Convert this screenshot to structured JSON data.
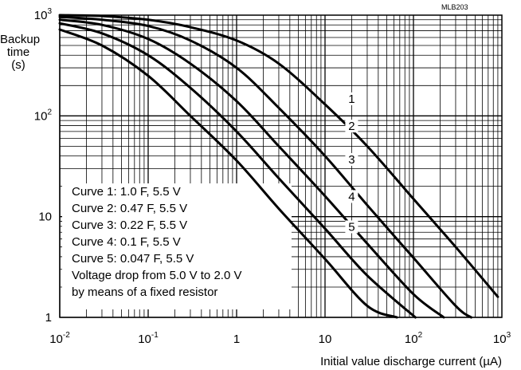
{
  "chart_data": {
    "type": "line",
    "code": "MLB203",
    "ylabel": [
      "Backup",
      "time",
      "(s)"
    ],
    "xlabel": "Initial value discharge current (µA)",
    "x_scale": "log",
    "y_scale": "log",
    "xlim": [
      0.01,
      1000
    ],
    "ylim": [
      1,
      1000
    ],
    "grid": true,
    "x_ticks": [
      {
        "value": 0.01,
        "base": "10",
        "exp": "-2"
      },
      {
        "value": 0.1,
        "base": "10",
        "exp": "-1"
      },
      {
        "value": 1,
        "base": "1",
        "exp": ""
      },
      {
        "value": 10,
        "base": "10",
        "exp": ""
      },
      {
        "value": 100,
        "base": "10",
        "exp": "2"
      },
      {
        "value": 1000,
        "base": "10",
        "exp": "3"
      }
    ],
    "y_ticks": [
      {
        "value": 1,
        "base": "1",
        "exp": ""
      },
      {
        "value": 10,
        "base": "10",
        "exp": ""
      },
      {
        "value": 100,
        "base": "10",
        "exp": "2"
      },
      {
        "value": 1000,
        "base": "10",
        "exp": "3"
      }
    ],
    "series": [
      {
        "name": "1",
        "label_at": [
          20,
          140
        ],
        "x": [
          0.01,
          0.03,
          0.1,
          0.3,
          1,
          3,
          10,
          30,
          100,
          300,
          900
        ],
        "y": [
          1000,
          980,
          900,
          760,
          560,
          330,
          130,
          50,
          15,
          5.0,
          1.6
        ]
      },
      {
        "name": "2",
        "label_at": [
          20,
          75
        ],
        "x": [
          0.01,
          0.03,
          0.1,
          0.3,
          1,
          3,
          10,
          30,
          100,
          300,
          450
        ],
        "y": [
          960,
          900,
          780,
          560,
          300,
          120,
          40,
          13,
          3.9,
          1.3,
          1.0
        ]
      },
      {
        "name": "3",
        "label_at": [
          20,
          35
        ],
        "x": [
          0.01,
          0.03,
          0.1,
          0.3,
          1,
          3,
          10,
          30,
          100,
          220
        ],
        "y": [
          900,
          800,
          580,
          330,
          140,
          50,
          16,
          5.4,
          1.7,
          1.0
        ]
      },
      {
        "name": "4",
        "label_at": [
          20,
          15
        ],
        "x": [
          0.01,
          0.03,
          0.1,
          0.3,
          1,
          3,
          10,
          30,
          105
        ],
        "y": [
          830,
          660,
          400,
          190,
          70,
          24,
          7.6,
          2.6,
          1.0
        ]
      },
      {
        "name": "5",
        "label_at": [
          20,
          7.5
        ],
        "x": [
          0.01,
          0.03,
          0.1,
          0.3,
          1,
          3,
          10,
          30,
          65
        ],
        "y": [
          720,
          500,
          250,
          100,
          36,
          12,
          3.8,
          1.3,
          1.0
        ]
      }
    ],
    "legend_lines": [
      "Curve 1:  1.0 F, 5.5 V",
      "Curve 2:  0.47 F, 5.5 V",
      "Curve 3:  0.22 F, 5.5 V",
      "Curve 4:  0.1 F, 5.5 V",
      "Curve 5:  0.047 F, 5.5 V",
      "Voltage drop from 5.0 V to 2.0 V",
      "by means of a fixed resistor"
    ],
    "legend_placement": "bottom-left"
  }
}
